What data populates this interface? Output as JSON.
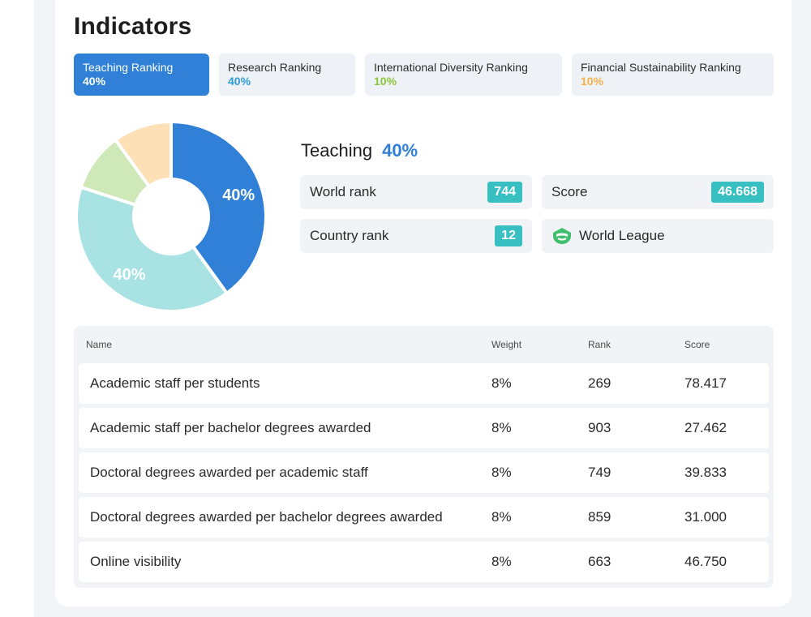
{
  "title": "Indicators",
  "tabs": [
    {
      "label": "Teaching Ranking",
      "value": "40%",
      "color": "#ffffff",
      "active": true
    },
    {
      "label": "Research Ranking",
      "value": "40%",
      "color": "#2f9bd6",
      "active": false
    },
    {
      "label": "International Diversity Ranking",
      "value": "10%",
      "color": "#8dc63f",
      "active": false
    },
    {
      "label": "Financial Sustainability Ranking",
      "value": "10%",
      "color": "#f5b04a",
      "active": false
    }
  ],
  "chart_data": {
    "type": "pie",
    "donut": true,
    "slices": [
      {
        "label": "40%",
        "value": 40,
        "color": "#2f80d6"
      },
      {
        "label": "40%",
        "value": 40,
        "color": "#a9e2e2"
      },
      {
        "label": "",
        "value": 10,
        "color": "#cfe8b8"
      },
      {
        "label": "",
        "value": 10,
        "color": "#fde0b6"
      }
    ]
  },
  "section": {
    "title": "Teaching",
    "percent": "40%"
  },
  "stats": {
    "world_rank_label": "World rank",
    "world_rank": "744",
    "score_label": "Score",
    "score": "46.668",
    "country_rank_label": "Country rank",
    "country_rank": "12",
    "league_label": "World League",
    "league_icon": "world-league-icon"
  },
  "table": {
    "headers": {
      "name": "Name",
      "weight": "Weight",
      "rank": "Rank",
      "score": "Score"
    },
    "rows": [
      {
        "name": "Academic staff per students",
        "weight": "8%",
        "rank": "269",
        "score": "78.417"
      },
      {
        "name": "Academic staff per bachelor degrees awarded",
        "weight": "8%",
        "rank": "903",
        "score": "27.462"
      },
      {
        "name": "Doctoral degrees awarded per academic staff",
        "weight": "8%",
        "rank": "749",
        "score": "39.833"
      },
      {
        "name": "Doctoral degrees awarded per bachelor degrees awarded",
        "weight": "8%",
        "rank": "859",
        "score": "31.000"
      },
      {
        "name": "Online visibility",
        "weight": "8%",
        "rank": "663",
        "score": "46.750"
      }
    ]
  }
}
